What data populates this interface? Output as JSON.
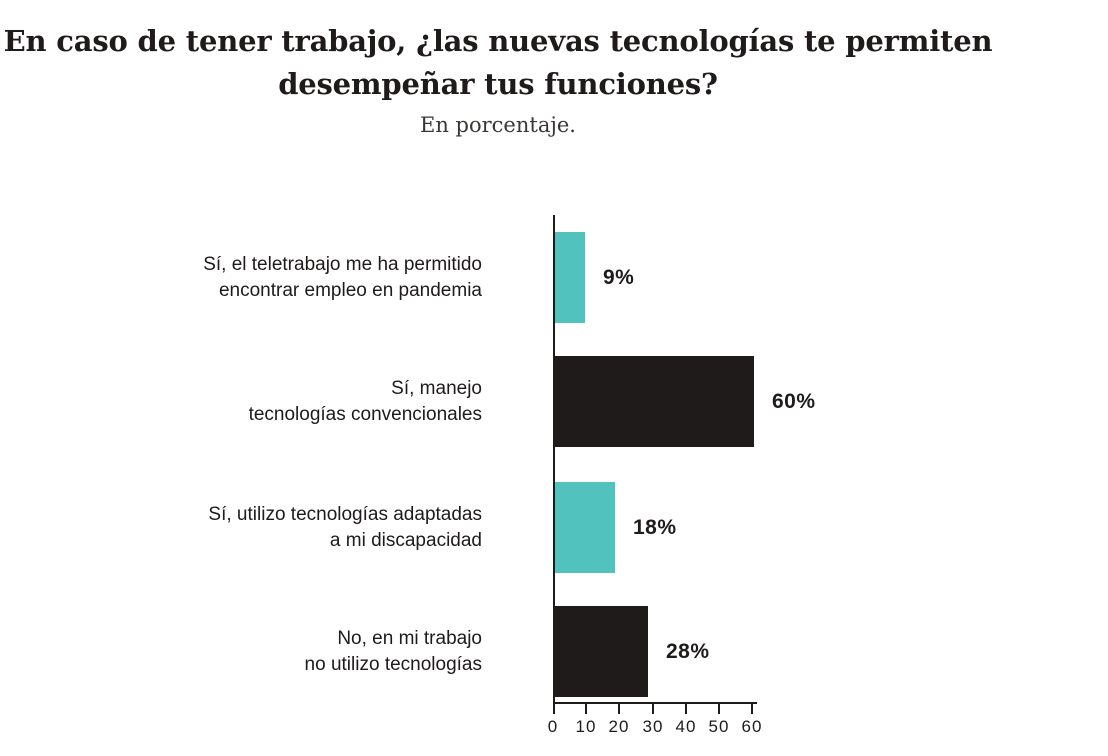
{
  "chart_data": {
    "type": "bar",
    "orientation": "horizontal",
    "title": "En caso de tener trabajo, ¿las nuevas tecnologías te permiten desempeñar tus funciones?",
    "title_lines": [
      "En caso de tener trabajo, ¿las nuevas tecnologías te permiten",
      "desempeñar tus funciones?"
    ],
    "subtitle": "En porcentaje.",
    "xlabel": "",
    "ylabel": "",
    "xlim": [
      0,
      60
    ],
    "x_ticks": [
      "0",
      "10",
      "20",
      "30",
      "40",
      "50",
      "60"
    ],
    "x_tick_values": [
      0,
      10,
      20,
      30,
      40,
      50,
      60
    ],
    "grid": false,
    "legend": false,
    "categories": [
      "Sí, el teletrabajo me ha permitido encontrar empleo en pandemia",
      "Sí, manejo tecnologías convencionales",
      "Sí, utilizo tecnologías adaptadas a mi discapacidad",
      "No, en mi trabajo no utilizo tecnologías"
    ],
    "values": [
      9,
      60,
      18,
      28
    ],
    "bars": [
      {
        "label_lines": [
          "Sí, el teletrabajo me ha permitido",
          "encontrar empleo en pandemia"
        ],
        "value": 9,
        "value_label": "9%",
        "color": "#52C2BE"
      },
      {
        "label_lines": [
          "Sí, manejo",
          "tecnologías convencionales"
        ],
        "value": 60,
        "value_label": "60%",
        "color": "#1E1B1A"
      },
      {
        "label_lines": [
          "Sí, utilizo tecnologías adaptadas",
          "a mi discapacidad"
        ],
        "value": 18,
        "value_label": "18%",
        "color": "#52C2BE"
      },
      {
        "label_lines": [
          "No, en mi trabajo",
          "no utilizo tecnologías"
        ],
        "value": 28,
        "value_label": "28%",
        "color": "#1E1B1A"
      }
    ],
    "colors": {
      "teal": "#52C2BE",
      "dark": "#1E1B1A",
      "axis": "#1E1B1A"
    }
  }
}
